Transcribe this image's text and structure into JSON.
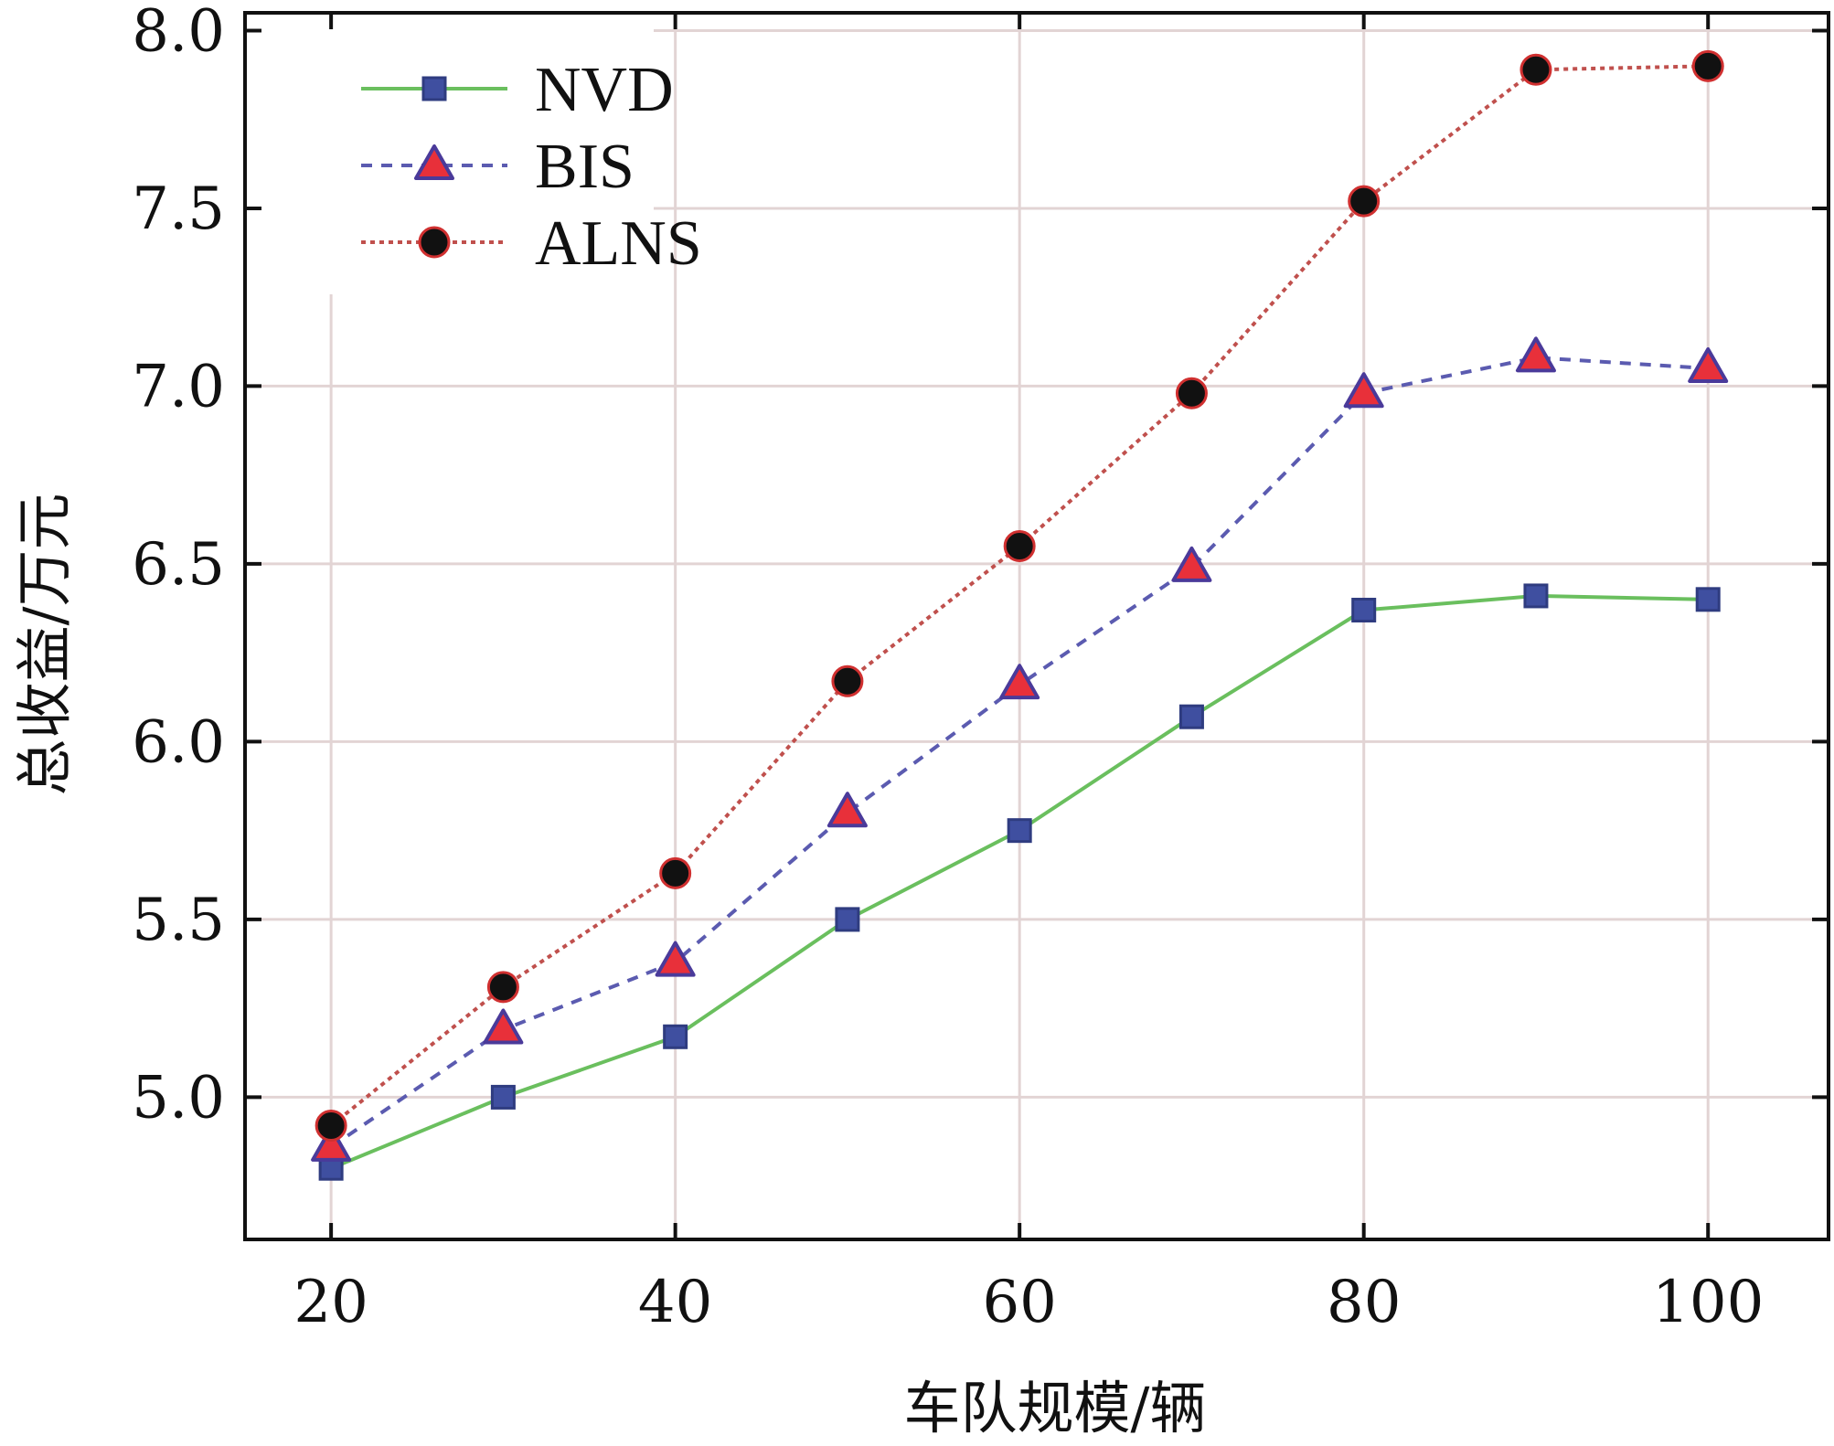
{
  "chart_data": {
    "type": "line",
    "x": [
      20,
      30,
      40,
      50,
      60,
      70,
      80,
      90,
      100
    ],
    "xticks": [
      20,
      40,
      60,
      80,
      100
    ],
    "xtick_labels": [
      "20",
      "40",
      "60",
      "80",
      "100"
    ],
    "xlim": [
      15,
      107
    ],
    "yticks": [
      5.0,
      5.5,
      6.0,
      6.5,
      7.0,
      7.5,
      8.0
    ],
    "ytick_labels": [
      "5.0",
      "5.5",
      "6.0",
      "6.5",
      "7.0",
      "7.5",
      "8.0"
    ],
    "ylim": [
      4.6,
      8.05
    ],
    "xlabel": "车队规模/辆",
    "ylabel": "总收益/万元",
    "grid": true,
    "legend_position": "top-left",
    "series": [
      {
        "name": "NVD",
        "values": [
          4.8,
          5.0,
          5.17,
          5.5,
          5.75,
          6.07,
          6.37,
          6.41,
          6.4
        ],
        "line_color": "#6abf5e",
        "line_style": "solid",
        "marker": "square",
        "marker_fill": "#3f4fa0",
        "marker_edge": "#2f3c80"
      },
      {
        "name": "BIS",
        "values": [
          4.86,
          5.19,
          5.38,
          5.8,
          6.16,
          6.49,
          6.98,
          7.08,
          7.05
        ],
        "line_color": "#5b5bb0",
        "line_style": "dashed",
        "marker": "triangle",
        "marker_fill": "#e8303a",
        "marker_edge": "#4a3a9a"
      },
      {
        "name": "ALNS",
        "values": [
          4.92,
          5.31,
          5.63,
          6.17,
          6.55,
          6.98,
          7.52,
          7.89,
          7.9
        ],
        "line_color": "#c0504d",
        "line_style": "dotted",
        "marker": "circle",
        "marker_fill": "#111111",
        "marker_edge": "#d03030"
      }
    ]
  }
}
